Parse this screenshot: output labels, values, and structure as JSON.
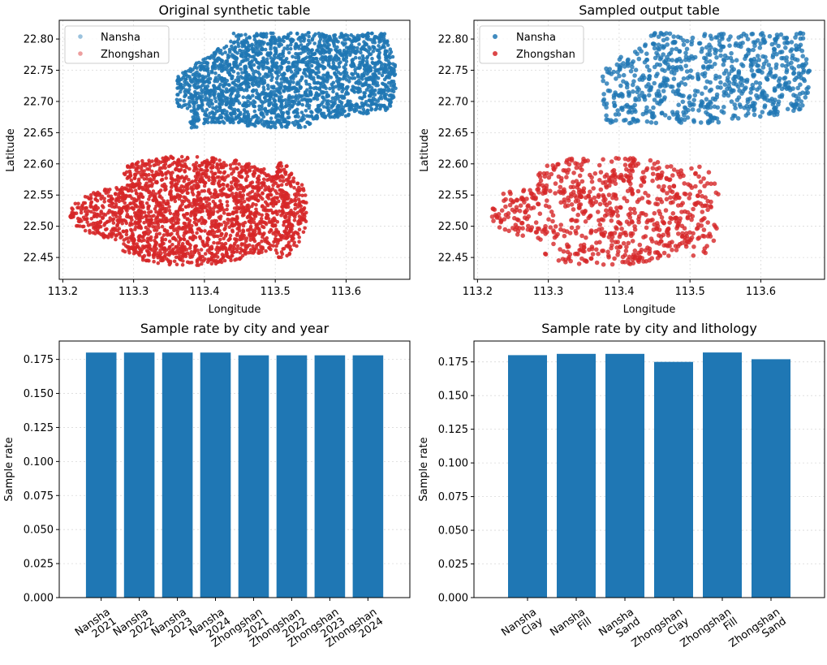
{
  "colors": {
    "nansha": "#1f77b4",
    "zhongshan": "#d62728",
    "bar": "#1f77b4",
    "grid": "#d9d9d9"
  },
  "chart_data": [
    {
      "type": "scatter",
      "title": "Original synthetic table",
      "xlabel": "Longitude",
      "ylabel": "Latitude",
      "xlim": [
        113.195,
        113.69
      ],
      "ylim": [
        22.415,
        22.83
      ],
      "xticks": [
        "113.2",
        "113.3",
        "113.4",
        "113.5",
        "113.6"
      ],
      "yticks": [
        "22.45",
        "22.50",
        "22.55",
        "22.60",
        "22.65",
        "22.70",
        "22.75",
        "22.80"
      ],
      "grid": true,
      "legend": "upper-left",
      "series": [
        {
          "name": "Nansha",
          "color": "#1f77b4",
          "legend_alpha": 0.45,
          "n_points": 2200,
          "extent": {
            "lon": [
              113.36,
              113.67
            ],
            "lat": [
              22.655,
              22.815
            ]
          }
        },
        {
          "name": "Zhongshan",
          "color": "#d62728",
          "legend_alpha": 0.45,
          "n_points": 2200,
          "extent": {
            "lon": [
              113.21,
              113.545
            ],
            "lat": [
              22.435,
              22.615
            ]
          }
        }
      ]
    },
    {
      "type": "scatter",
      "title": "Sampled output table",
      "xlabel": "Longitude",
      "ylabel": "Latitude",
      "xlim": [
        113.195,
        113.69
      ],
      "ylim": [
        22.415,
        22.83
      ],
      "xticks": [
        "113.2",
        "113.3",
        "113.4",
        "113.5",
        "113.6"
      ],
      "yticks": [
        "22.45",
        "22.50",
        "22.55",
        "22.60",
        "22.65",
        "22.70",
        "22.75",
        "22.80"
      ],
      "grid": true,
      "legend": "upper-left",
      "series": [
        {
          "name": "Nansha",
          "color": "#1f77b4",
          "legend_alpha": 0.85,
          "n_points": 760,
          "extent": {
            "lon": [
              113.375,
              113.67
            ],
            "lat": [
              22.665,
              22.81
            ]
          }
        },
        {
          "name": "Zhongshan",
          "color": "#d62728",
          "legend_alpha": 0.85,
          "n_points": 760,
          "extent": {
            "lon": [
              113.22,
              113.54
            ],
            "lat": [
              22.435,
              22.61
            ]
          }
        }
      ]
    },
    {
      "type": "bar",
      "title": "Sample rate by city and year",
      "xlabel": "",
      "ylabel": "Sample rate",
      "ylim": [
        0,
        0.1885
      ],
      "yticks": [
        "0.000",
        "0.025",
        "0.050",
        "0.075",
        "0.100",
        "0.125",
        "0.150",
        "0.175"
      ],
      "grid": true,
      "categories": [
        [
          "Nansha",
          "2021"
        ],
        [
          "Nansha",
          "2022"
        ],
        [
          "Nansha",
          "2023"
        ],
        [
          "Nansha",
          "2024"
        ],
        [
          "Zhongshan",
          "2021"
        ],
        [
          "Zhongshan",
          "2022"
        ],
        [
          "Zhongshan",
          "2023"
        ],
        [
          "Zhongshan",
          "2024"
        ]
      ],
      "values": [
        0.18,
        0.18,
        0.18,
        0.18,
        0.178,
        0.178,
        0.178,
        0.178
      ]
    },
    {
      "type": "bar",
      "title": "Sample rate by city and lithology",
      "xlabel": "",
      "ylabel": "Sample rate",
      "ylim": [
        0,
        0.1905
      ],
      "yticks": [
        "0.000",
        "0.025",
        "0.050",
        "0.075",
        "0.100",
        "0.125",
        "0.150",
        "0.175"
      ],
      "grid": true,
      "categories": [
        [
          "Nansha",
          "Clay"
        ],
        [
          "Nansha",
          "Fill"
        ],
        [
          "Nansha",
          "Sand"
        ],
        [
          "Zhongshan",
          "Clay"
        ],
        [
          "Zhongshan",
          "Fill"
        ],
        [
          "Zhongshan",
          "Sand"
        ]
      ],
      "values": [
        0.18,
        0.181,
        0.181,
        0.175,
        0.182,
        0.177
      ]
    }
  ]
}
